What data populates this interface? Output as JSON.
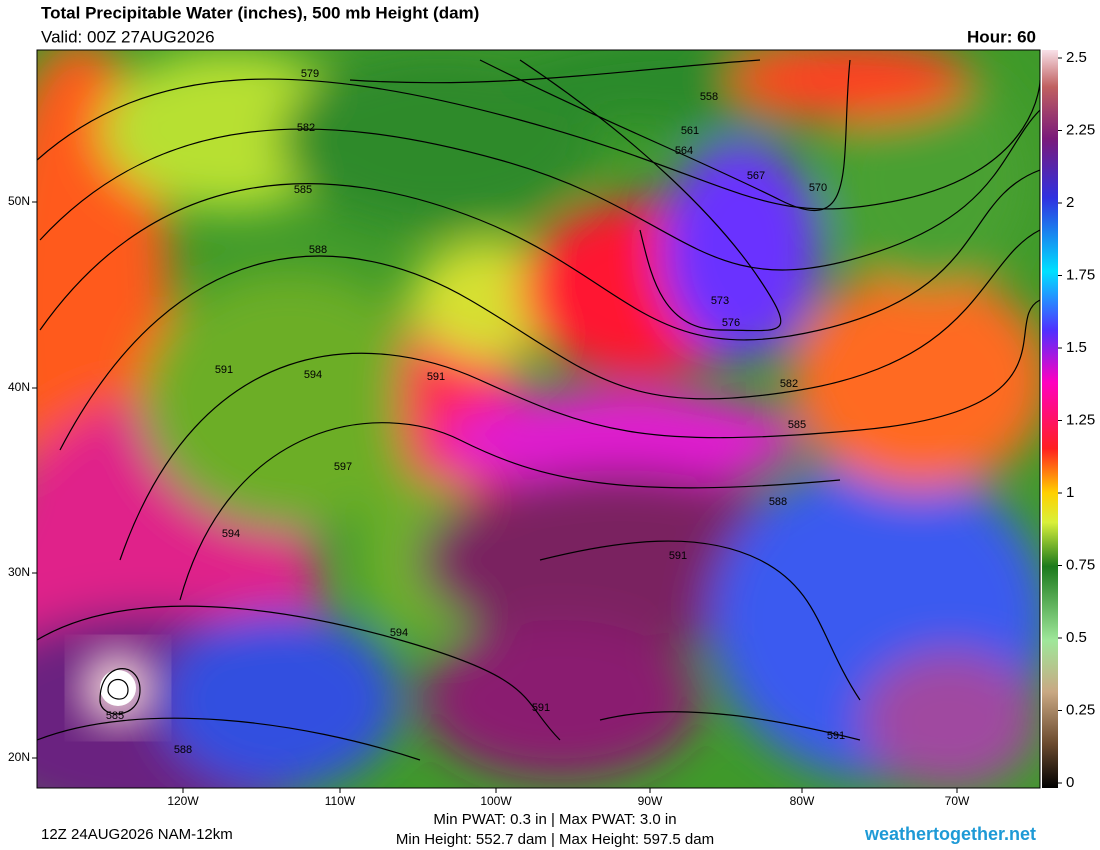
{
  "header": {
    "title": "Total Precipitable Water (inches), 500 mb Height (dam)",
    "valid": "Valid: 00Z 27AUG2026",
    "hour": "Hour: 60"
  },
  "colorbar": {
    "range": [
      0,
      2.5
    ],
    "ticks": [
      0,
      0.25,
      0.5,
      0.75,
      1,
      1.25,
      1.5,
      1.75,
      2,
      2.25,
      2.5
    ]
  },
  "axes": {
    "lon_labels": [
      "120W",
      "110W",
      "100W",
      "90W",
      "80W",
      "70W"
    ],
    "lat_labels": [
      "50N",
      "40N",
      "30N",
      "20N"
    ]
  },
  "contour_labels": [
    579,
    582,
    585,
    588,
    591,
    594,
    591,
    597,
    594,
    594,
    591,
    585,
    588,
    558,
    561,
    564,
    567,
    570,
    573,
    576,
    582,
    585,
    588,
    591,
    591
  ],
  "footer": {
    "run": "12Z 24AUG2026 NAM-12km",
    "pwat": "Min PWAT:   0.3 in | Max PWAT:   3.0 in",
    "height": "Min Height: 552.7 dam | Max Height: 597.5 dam",
    "site": "weathertogether.net"
  }
}
